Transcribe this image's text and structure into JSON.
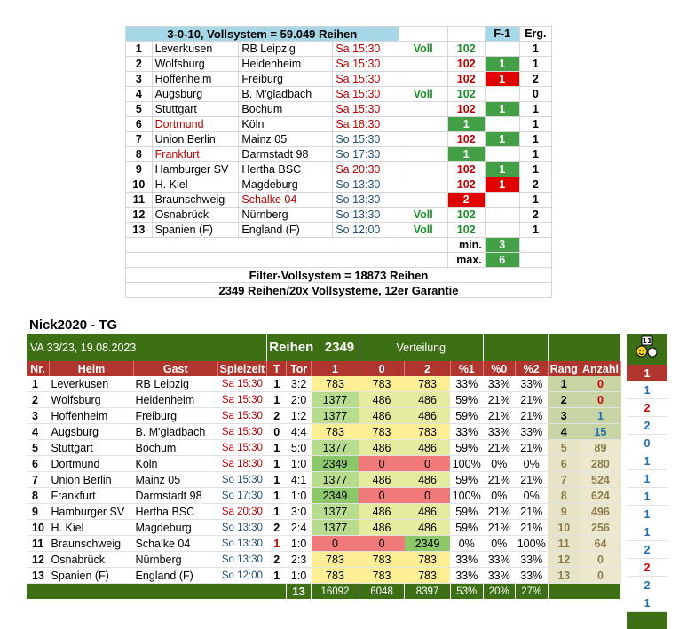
{
  "top": {
    "header_title": "3-0-10, Vollsystem = 59.049 Reihen",
    "header_f1": "F-1",
    "header_erg": "Erg.",
    "rows": [
      {
        "nr": "1",
        "heim": "Leverkusen",
        "gast": "RB Leipzig",
        "zeit": "Sa 15:30",
        "voll": "Voll",
        "n": "102",
        "f1": "",
        "erg": "1"
      },
      {
        "nr": "2",
        "heim": "Wolfsburg",
        "gast": "Heidenheim",
        "zeit": "Sa 15:30",
        "voll": "",
        "n": "102",
        "f1": "1",
        "erg": "1"
      },
      {
        "nr": "3",
        "heim": "Hoffenheim",
        "gast": "Freiburg",
        "zeit": "Sa 15:30",
        "voll": "",
        "n": "102",
        "f1": "1",
        "erg": "2"
      },
      {
        "nr": "4",
        "heim": "Augsburg",
        "gast": "B. M'gladbach",
        "zeit": "Sa 15:30",
        "voll": "Voll",
        "n": "102",
        "f1": "",
        "erg": "0"
      },
      {
        "nr": "5",
        "heim": "Stuttgart",
        "gast": "Bochum",
        "zeit": "Sa 15:30",
        "voll": "",
        "n": "102",
        "f1": "1",
        "erg": "1"
      },
      {
        "nr": "6",
        "heim": "Dortmund",
        "gast": "Köln",
        "zeit": "Sa 18:30",
        "voll": "",
        "n": "1",
        "f1": "",
        "erg": "1"
      },
      {
        "nr": "7",
        "heim": "Union Berlin",
        "gast": "Mainz 05",
        "zeit": "So 15:30",
        "voll": "",
        "n": "102",
        "f1": "1",
        "erg": "1"
      },
      {
        "nr": "8",
        "heim": "Frankfurt",
        "gast": "Darmstadt 98",
        "zeit": "So 17:30",
        "voll": "",
        "n": "1",
        "f1": "",
        "erg": "1"
      },
      {
        "nr": "9",
        "heim": "Hamburger SV",
        "gast": "Hertha BSC",
        "zeit": "Sa 20:30",
        "voll": "",
        "n": "102",
        "f1": "1",
        "erg": "1"
      },
      {
        "nr": "10",
        "heim": "H. Kiel",
        "gast": "Magdeburg",
        "zeit": "So 13:30",
        "voll": "",
        "n": "102",
        "f1": "1",
        "erg": "2"
      },
      {
        "nr": "11",
        "heim": "Braunschweig",
        "gast": "Schalke 04",
        "zeit": "So 13:30",
        "voll": "",
        "n": "2",
        "f1": "",
        "erg": "1"
      },
      {
        "nr": "12",
        "heim": "Osnabrück",
        "gast": "Nürnberg",
        "zeit": "So 13:30",
        "voll": "Voll",
        "n": "102",
        "f1": "",
        "erg": "2"
      },
      {
        "nr": "13",
        "heim": "Spanien (F)",
        "gast": "England (F)",
        "zeit": "So 12:00",
        "voll": "Voll",
        "n": "102",
        "f1": "",
        "erg": "1"
      }
    ],
    "min_label": "min.",
    "min_value": "3",
    "max_label": "max.",
    "max_value": "6",
    "footer1": "Filter-Vollsystem = 18873 Reihen",
    "footer2": "2349 Reihen/20x Vollsysteme, 12er Garantie"
  },
  "bottom": {
    "title": "Nick2020 - TG",
    "va": "VA 33/23, 19.08.2023",
    "reihen_label": "Reihen",
    "reihen_value": "2349",
    "verteilung": "Verteilung",
    "headers": [
      "Nr.",
      "Heim",
      "Gast",
      "Spielzeit",
      "T",
      "Tor",
      "1",
      "0",
      "2",
      "%1",
      "%0",
      "%2",
      "Rang",
      "Anzahl"
    ],
    "rows": [
      {
        "nr": "1",
        "heim": "Leverkusen",
        "gast": "RB Leipzig",
        "zeit": "Sa 15:30",
        "t": "1",
        "tor": "3:2",
        "v1": "783",
        "v0": "783",
        "v2": "783",
        "p1": "33%",
        "p0": "33%",
        "p2": "33%",
        "rang": "1",
        "anz": "0",
        "side": "1"
      },
      {
        "nr": "2",
        "heim": "Wolfsburg",
        "gast": "Heidenheim",
        "zeit": "Sa 15:30",
        "t": "1",
        "tor": "2:0",
        "v1": "1377",
        "v0": "486",
        "v2": "486",
        "p1": "59%",
        "p0": "21%",
        "p2": "21%",
        "rang": "2",
        "anz": "0",
        "side": "2"
      },
      {
        "nr": "3",
        "heim": "Hoffenheim",
        "gast": "Freiburg",
        "zeit": "Sa 15:30",
        "t": "2",
        "tor": "1:2",
        "v1": "1377",
        "v0": "486",
        "v2": "486",
        "p1": "59%",
        "p0": "21%",
        "p2": "21%",
        "rang": "3",
        "anz": "1",
        "side": "2"
      },
      {
        "nr": "4",
        "heim": "Augsburg",
        "gast": "B. M'gladbach",
        "zeit": "Sa 15:30",
        "t": "0",
        "tor": "4:4",
        "v1": "783",
        "v0": "783",
        "v2": "783",
        "p1": "33%",
        "p0": "33%",
        "p2": "33%",
        "rang": "4",
        "anz": "15",
        "side": "0"
      },
      {
        "nr": "5",
        "heim": "Stuttgart",
        "gast": "Bochum",
        "zeit": "Sa 15:30",
        "t": "1",
        "tor": "5:0",
        "v1": "1377",
        "v0": "486",
        "v2": "486",
        "p1": "59%",
        "p0": "21%",
        "p2": "21%",
        "rang": "5",
        "anz": "89",
        "side": "1"
      },
      {
        "nr": "6",
        "heim": "Dortmund",
        "gast": "Köln",
        "zeit": "Sa 18:30",
        "t": "1",
        "tor": "1:0",
        "v1": "2349",
        "v0": "0",
        "v2": "0",
        "p1": "100%",
        "p0": "0%",
        "p2": "0%",
        "rang": "6",
        "anz": "280",
        "side": "1"
      },
      {
        "nr": "7",
        "heim": "Union Berlin",
        "gast": "Mainz 05",
        "zeit": "So 15:30",
        "t": "1",
        "tor": "4:1",
        "v1": "1377",
        "v0": "486",
        "v2": "486",
        "p1": "59%",
        "p0": "21%",
        "p2": "21%",
        "rang": "7",
        "anz": "524",
        "side": "1"
      },
      {
        "nr": "8",
        "heim": "Frankfurt",
        "gast": "Darmstadt 98",
        "zeit": "So 17:30",
        "t": "1",
        "tor": "1:0",
        "v1": "2349",
        "v0": "0",
        "v2": "0",
        "p1": "100%",
        "p0": "0%",
        "p2": "0%",
        "rang": "8",
        "anz": "624",
        "side": "1"
      },
      {
        "nr": "9",
        "heim": "Hamburger SV",
        "gast": "Hertha BSC",
        "zeit": "Sa 20:30",
        "t": "1",
        "tor": "3:0",
        "v1": "1377",
        "v0": "486",
        "v2": "486",
        "p1": "59%",
        "p0": "21%",
        "p2": "21%",
        "rang": "9",
        "anz": "496",
        "side": "1"
      },
      {
        "nr": "10",
        "heim": "H. Kiel",
        "gast": "Magdeburg",
        "zeit": "So 13:30",
        "t": "2",
        "tor": "2:4",
        "v1": "1377",
        "v0": "486",
        "v2": "486",
        "p1": "59%",
        "p0": "21%",
        "p2": "21%",
        "rang": "10",
        "anz": "256",
        "side": "2"
      },
      {
        "nr": "11",
        "heim": "Braunschweig",
        "gast": "Schalke 04",
        "zeit": "So 13:30",
        "t": "1",
        "tor": "1:0",
        "v1": "0",
        "v0": "0",
        "v2": "2349",
        "p1": "0%",
        "p0": "0%",
        "p2": "100%",
        "rang": "11",
        "anz": "64",
        "side": "2"
      },
      {
        "nr": "12",
        "heim": "Osnabrück",
        "gast": "Nürnberg",
        "zeit": "So 13:30",
        "t": "2",
        "tor": "2:3",
        "v1": "783",
        "v0": "783",
        "v2": "783",
        "p1": "33%",
        "p0": "33%",
        "p2": "33%",
        "rang": "12",
        "anz": "0",
        "side": "2"
      },
      {
        "nr": "13",
        "heim": "Spanien (F)",
        "gast": "England (F)",
        "zeit": "So 12:00",
        "t": "1",
        "tor": "1:0",
        "v1": "783",
        "v0": "783",
        "v2": "783",
        "p1": "33%",
        "p0": "33%",
        "p2": "33%",
        "rang": "13",
        "anz": "0",
        "side": "1"
      }
    ],
    "sum": {
      "count": "13",
      "s1": "16092",
      "s0": "6048",
      "s2": "8397",
      "p1": "53%",
      "p0": "20%",
      "p2": "27%"
    },
    "side_header": "1",
    "side_icon": "smiley-icon"
  },
  "colors": {
    "green_bar": "#3d6f14",
    "header_red": "#b0352f",
    "top_header": "#a6d7e6",
    "f1_green": "#43a047",
    "f1_red": "#e10000"
  }
}
